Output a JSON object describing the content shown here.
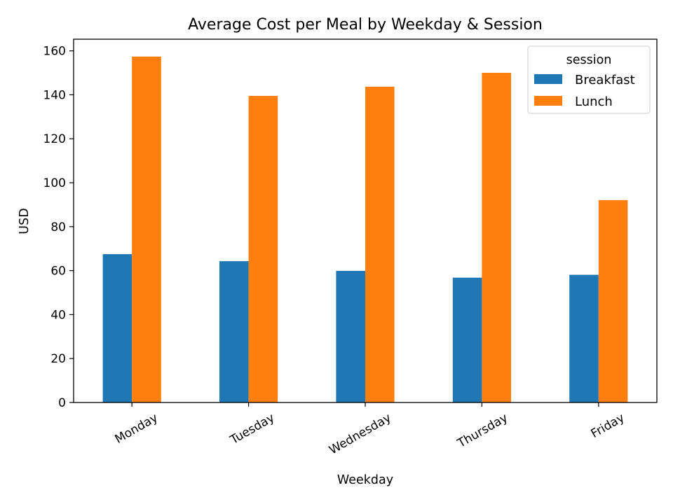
{
  "chart_data": {
    "type": "bar",
    "title": "Average Cost per Meal by Weekday & Session",
    "xlabel": "Weekday",
    "ylabel": "USD",
    "categories": [
      "Monday",
      "Tuesday",
      "Wednesday",
      "Thursday",
      "Friday"
    ],
    "series": [
      {
        "name": "Breakfast",
        "color": "#1f77b4",
        "values": [
          67.5,
          64.3,
          59.9,
          56.8,
          58.1
        ]
      },
      {
        "name": "Lunch",
        "color": "#ff7f0e",
        "values": [
          157.4,
          139.5,
          143.7,
          150.0,
          92.1
        ]
      }
    ],
    "ylim": [
      0,
      165.3
    ],
    "yticks": [
      0,
      20,
      40,
      60,
      80,
      100,
      120,
      140,
      160
    ],
    "legend": {
      "title": "session",
      "placement": "top-right"
    },
    "grid": false
  }
}
